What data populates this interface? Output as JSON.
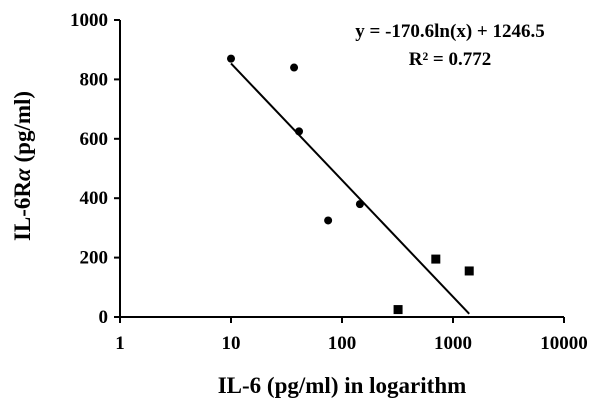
{
  "chart_data": {
    "type": "scatter",
    "title": "",
    "xlabel": "IL-6 (pg/ml) in logarithm",
    "ylabel_main": "IL-6R",
    "ylabel_greek": "α",
    "ylabel_unit": " (pg/ml)",
    "x_scale": "log",
    "xlim": [
      1,
      10000
    ],
    "ylim": [
      0,
      1000
    ],
    "x_ticks": [
      1,
      10,
      100,
      1000,
      10000
    ],
    "x_tick_labels": [
      "1",
      "10",
      "100",
      "1000",
      "10000"
    ],
    "y_ticks": [
      0,
      200,
      400,
      600,
      800,
      1000
    ],
    "y_tick_labels": [
      "0",
      "200",
      "400",
      "600",
      "800",
      "1000"
    ],
    "grid": false,
    "legend": "none",
    "series": [
      {
        "marker": "circle",
        "color": "#000000",
        "points": [
          {
            "x": 10,
            "y": 870
          },
          {
            "x": 37,
            "y": 840
          },
          {
            "x": 41,
            "y": 625
          },
          {
            "x": 75,
            "y": 325
          },
          {
            "x": 145,
            "y": 380
          }
        ]
      },
      {
        "marker": "square",
        "color": "#000000",
        "points": [
          {
            "x": 320,
            "y": 25
          },
          {
            "x": 700,
            "y": 195
          },
          {
            "x": 1400,
            "y": 155
          }
        ]
      }
    ],
    "trendline": {
      "type": "logarithmic",
      "a": -170.6,
      "b": 1246.5,
      "x_start": 10,
      "x_end": 1400,
      "color": "#000000"
    },
    "annotations": {
      "equation": "y = -170.6ln(x) + 1246.5",
      "r_squared": "R² = 0.772"
    }
  }
}
